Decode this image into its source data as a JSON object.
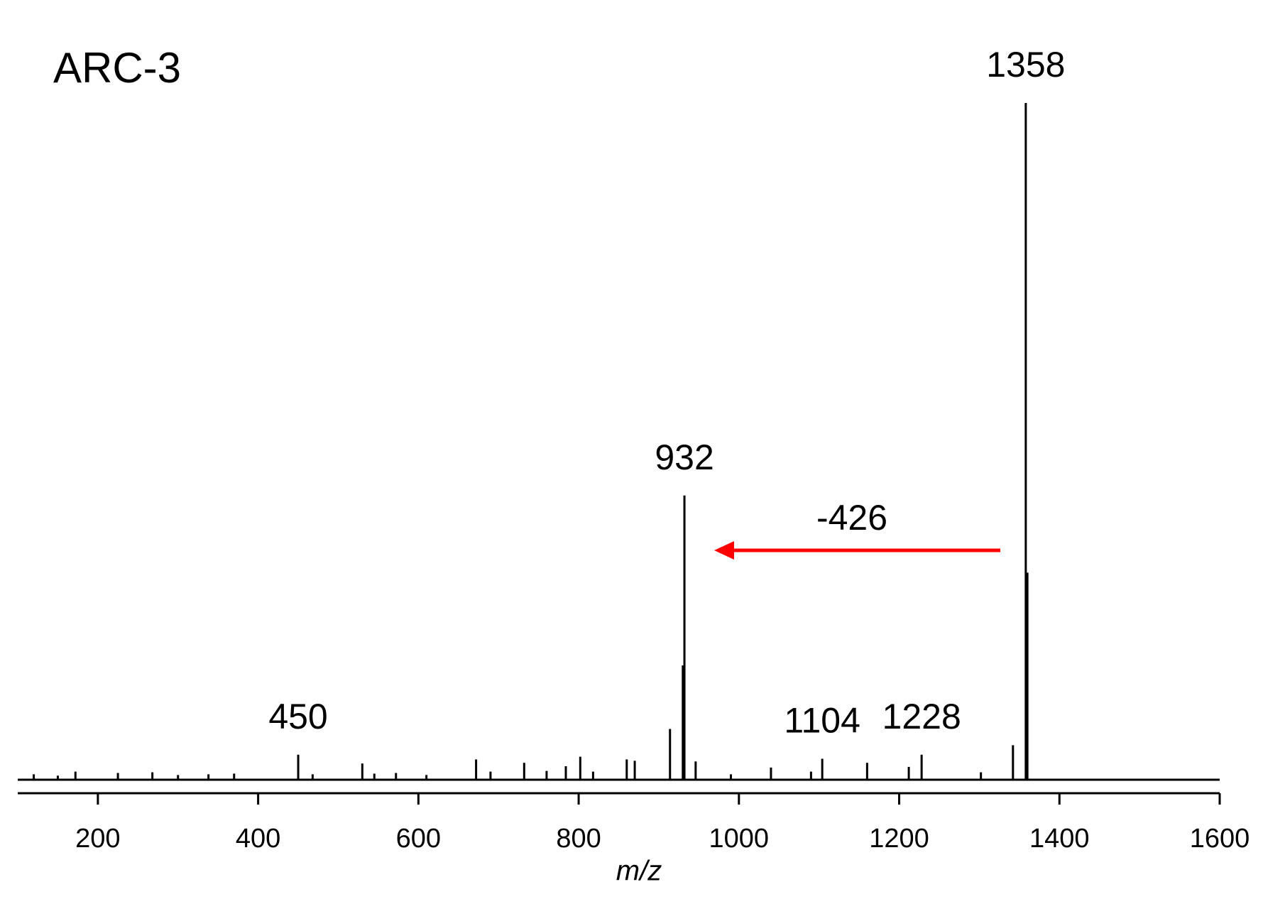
{
  "chart_data": {
    "type": "spectrum",
    "title": "ARC-3",
    "x_label": "m/z",
    "x": [
      120,
      150,
      172,
      225,
      268,
      300,
      338,
      370,
      450,
      468,
      530,
      545,
      572,
      610,
      672,
      690,
      732,
      760,
      784,
      802,
      818,
      860,
      870,
      914,
      930,
      932,
      946,
      990,
      1040,
      1090,
      1104,
      1160,
      1212,
      1228,
      1302,
      1342,
      1358,
      1360
    ],
    "values": [
      0.8,
      0.6,
      1.2,
      1.0,
      1.1,
      0.7,
      0.8,
      0.9,
      3.7,
      0.8,
      2.4,
      0.9,
      1.0,
      0.7,
      3.0,
      1.2,
      2.5,
      1.3,
      2.0,
      3.4,
      1.2,
      3.0,
      2.8,
      7.5,
      16.9,
      42,
      2.7,
      0.8,
      1.8,
      1.2,
      3.1,
      2.5,
      1.9,
      3.7,
      1.1,
      5.1,
      100,
      30.6
    ],
    "peak_labels": [
      450,
      932,
      1104,
      1228,
      1358
    ],
    "color": "#000000",
    "annotation": {
      "text": "-426",
      "color": "#ff0000"
    },
    "xlim": [
      100,
      1600
    ],
    "xticks": [
      200,
      400,
      600,
      800,
      1000,
      1200,
      1400,
      1600
    ],
    "ylim": [
      0,
      100
    ]
  }
}
